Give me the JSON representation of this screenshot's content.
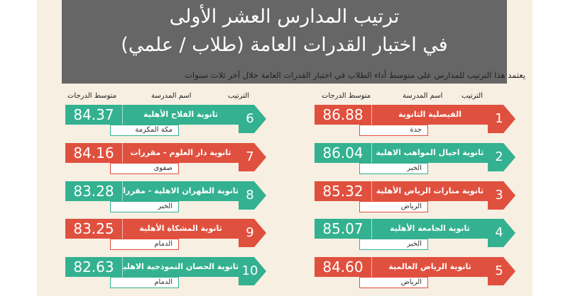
{
  "title_line1": "ترتيب المدارس العشر الأولى",
  "title_line2": "في اختبار القدرات العامة (طلاب / علمي)",
  "subtitle": "يعتمد هذا الترتيب للمدارس على متوسط أداء الطلاب في اختبار القدرات العامة خلال آخر ثلاث سنوات",
  "headers": {
    "score": "متوسط الدرجات",
    "school": "اسم المدرسة",
    "rank": "الترتيب"
  },
  "colors": {
    "green": "#33b190",
    "red": "#e0503e",
    "header_bg": "#666666",
    "page_bg": "#f6efe2"
  },
  "right_column": [
    {
      "rank": "1",
      "name": "الفيصلية الثانوية",
      "city": "جدة",
      "score": "86.88",
      "color": "red"
    },
    {
      "rank": "2",
      "name": "ثانوية اجيال المواهب الاهلية",
      "city": "الخبر",
      "score": "86.04",
      "color": "green"
    },
    {
      "rank": "3",
      "name": "ثانوية منارات الرياض الأهلية",
      "city": "الرياض",
      "score": "85.32",
      "color": "red"
    },
    {
      "rank": "4",
      "name": "ثانوية الجامعة الأهلية",
      "city": "الخبر",
      "score": "85.07",
      "color": "green"
    },
    {
      "rank": "5",
      "name": "ثانوية الرياض العالمية",
      "city": "الرياض",
      "score": "84.60",
      "color": "red"
    }
  ],
  "left_column": [
    {
      "rank": "6",
      "name": "ثانوية الفلاح الأهلية",
      "city": "مكة المكرمة",
      "score": "84.37",
      "color": "green"
    },
    {
      "rank": "7",
      "name": "ثانوية دار العلوم - مقررات",
      "city": "صفوى",
      "score": "84.16",
      "color": "red"
    },
    {
      "rank": "8",
      "name": "ثانوية الظهران الاهلية - مقررات",
      "city": "الخبر",
      "score": "83.28",
      "color": "green"
    },
    {
      "rank": "9",
      "name": "ثانوية المشكاة الأهلية",
      "city": "الدمام",
      "score": "83.25",
      "color": "red"
    },
    {
      "rank": "10",
      "name": "ثانوية الحصان النموذجية الاهلية- مقررات",
      "city": "الدمام",
      "score": "82.63",
      "color": "green"
    }
  ]
}
